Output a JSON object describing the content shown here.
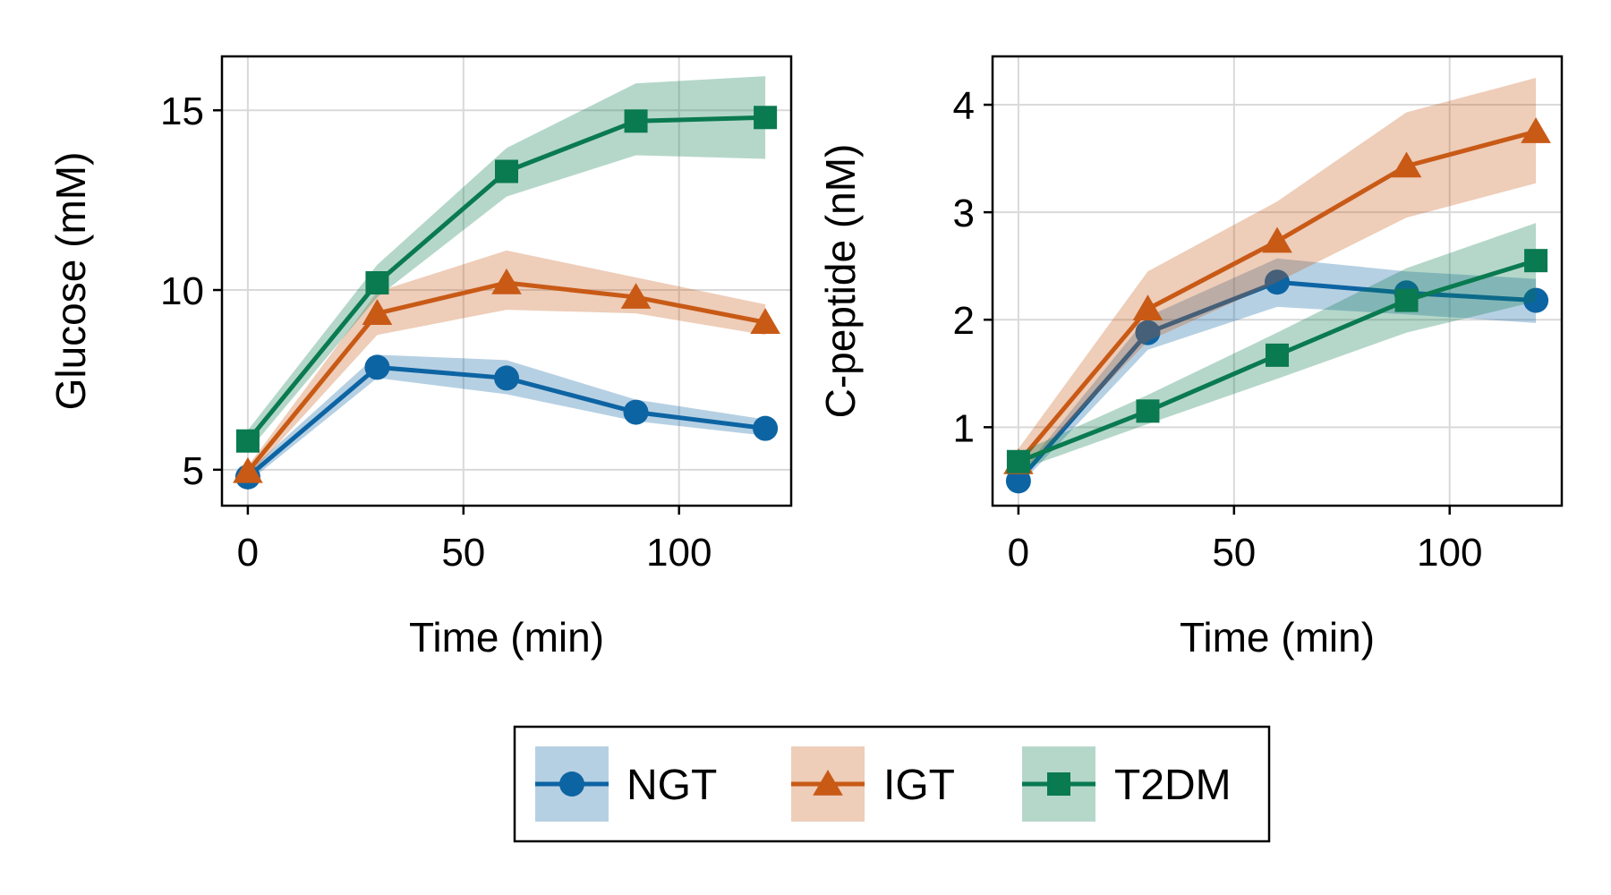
{
  "chart_data": [
    {
      "type": "line",
      "xlabel": "Time (min)",
      "ylabel": "Glucose (mM)",
      "x": [
        0,
        30,
        60,
        90,
        120
      ],
      "xlim": [
        -6,
        126
      ],
      "ylim": [
        4.0,
        16.5
      ],
      "xticks": [
        0,
        50,
        100
      ],
      "xtick_labels": [
        "0",
        "50",
        "100"
      ],
      "yticks": [
        5,
        10,
        15
      ],
      "ytick_labels": [
        "5",
        "10",
        "15"
      ],
      "grid": true,
      "series": [
        {
          "name": "NGT",
          "marker": "circle",
          "color": "#0d64a3",
          "values": [
            4.8,
            7.85,
            7.55,
            6.6,
            6.15
          ],
          "lower": [
            4.65,
            7.55,
            7.1,
            6.35,
            5.95
          ],
          "upper": [
            4.95,
            8.2,
            8.05,
            6.95,
            6.4
          ]
        },
        {
          "name": "IGT",
          "marker": "triangle",
          "color": "#c85a16",
          "values": [
            4.95,
            9.35,
            10.2,
            9.8,
            9.1
          ],
          "lower": [
            4.8,
            8.75,
            9.45,
            9.35,
            8.75
          ],
          "upper": [
            5.1,
            9.95,
            11.1,
            10.35,
            9.6
          ]
        },
        {
          "name": "T2DM",
          "marker": "square",
          "color": "#0a7a50",
          "values": [
            5.8,
            10.2,
            13.3,
            14.7,
            14.8
          ],
          "lower": [
            5.5,
            9.8,
            12.6,
            13.75,
            13.65
          ],
          "upper": [
            6.1,
            10.7,
            13.95,
            15.75,
            15.95
          ]
        }
      ]
    },
    {
      "type": "line",
      "xlabel": "Time (min)",
      "ylabel": "C-peptide (nM)",
      "x": [
        0,
        30,
        60,
        90,
        120
      ],
      "xlim": [
        -6,
        126
      ],
      "ylim": [
        0.27,
        4.45
      ],
      "xticks": [
        0,
        50,
        100
      ],
      "xtick_labels": [
        "0",
        "50",
        "100"
      ],
      "yticks": [
        1,
        2,
        3,
        4
      ],
      "ytick_labels": [
        "1",
        "2",
        "3",
        "4"
      ],
      "grid": true,
      "series": [
        {
          "name": "NGT",
          "marker": "circle",
          "color": "#0d64a3",
          "values": [
            0.5,
            1.88,
            2.35,
            2.25,
            2.18
          ],
          "lower": [
            0.45,
            1.72,
            2.12,
            2.05,
            1.97
          ],
          "upper": [
            0.55,
            2.03,
            2.57,
            2.45,
            2.38
          ]
        },
        {
          "name": "IGT",
          "marker": "triangle",
          "color": "#c85a16",
          "values": [
            0.67,
            2.1,
            2.73,
            3.43,
            3.75
          ],
          "lower": [
            0.55,
            1.8,
            2.35,
            2.95,
            3.27
          ],
          "upper": [
            0.8,
            2.45,
            3.1,
            3.93,
            4.25
          ]
        },
        {
          "name": "T2DM",
          "marker": "square",
          "color": "#0a7a50",
          "values": [
            0.68,
            1.15,
            1.67,
            2.18,
            2.55
          ],
          "lower": [
            0.6,
            1.03,
            1.45,
            1.88,
            2.17
          ],
          "upper": [
            0.76,
            1.3,
            1.88,
            2.48,
            2.9
          ]
        }
      ]
    }
  ],
  "legend": {
    "placement": "bottom-center",
    "entries": [
      {
        "label": "NGT",
        "marker": "circle",
        "color": "#0d64a3"
      },
      {
        "label": "IGT",
        "marker": "triangle",
        "color": "#c85a16"
      },
      {
        "label": "T2DM",
        "marker": "square",
        "color": "#0a7a50"
      }
    ]
  }
}
